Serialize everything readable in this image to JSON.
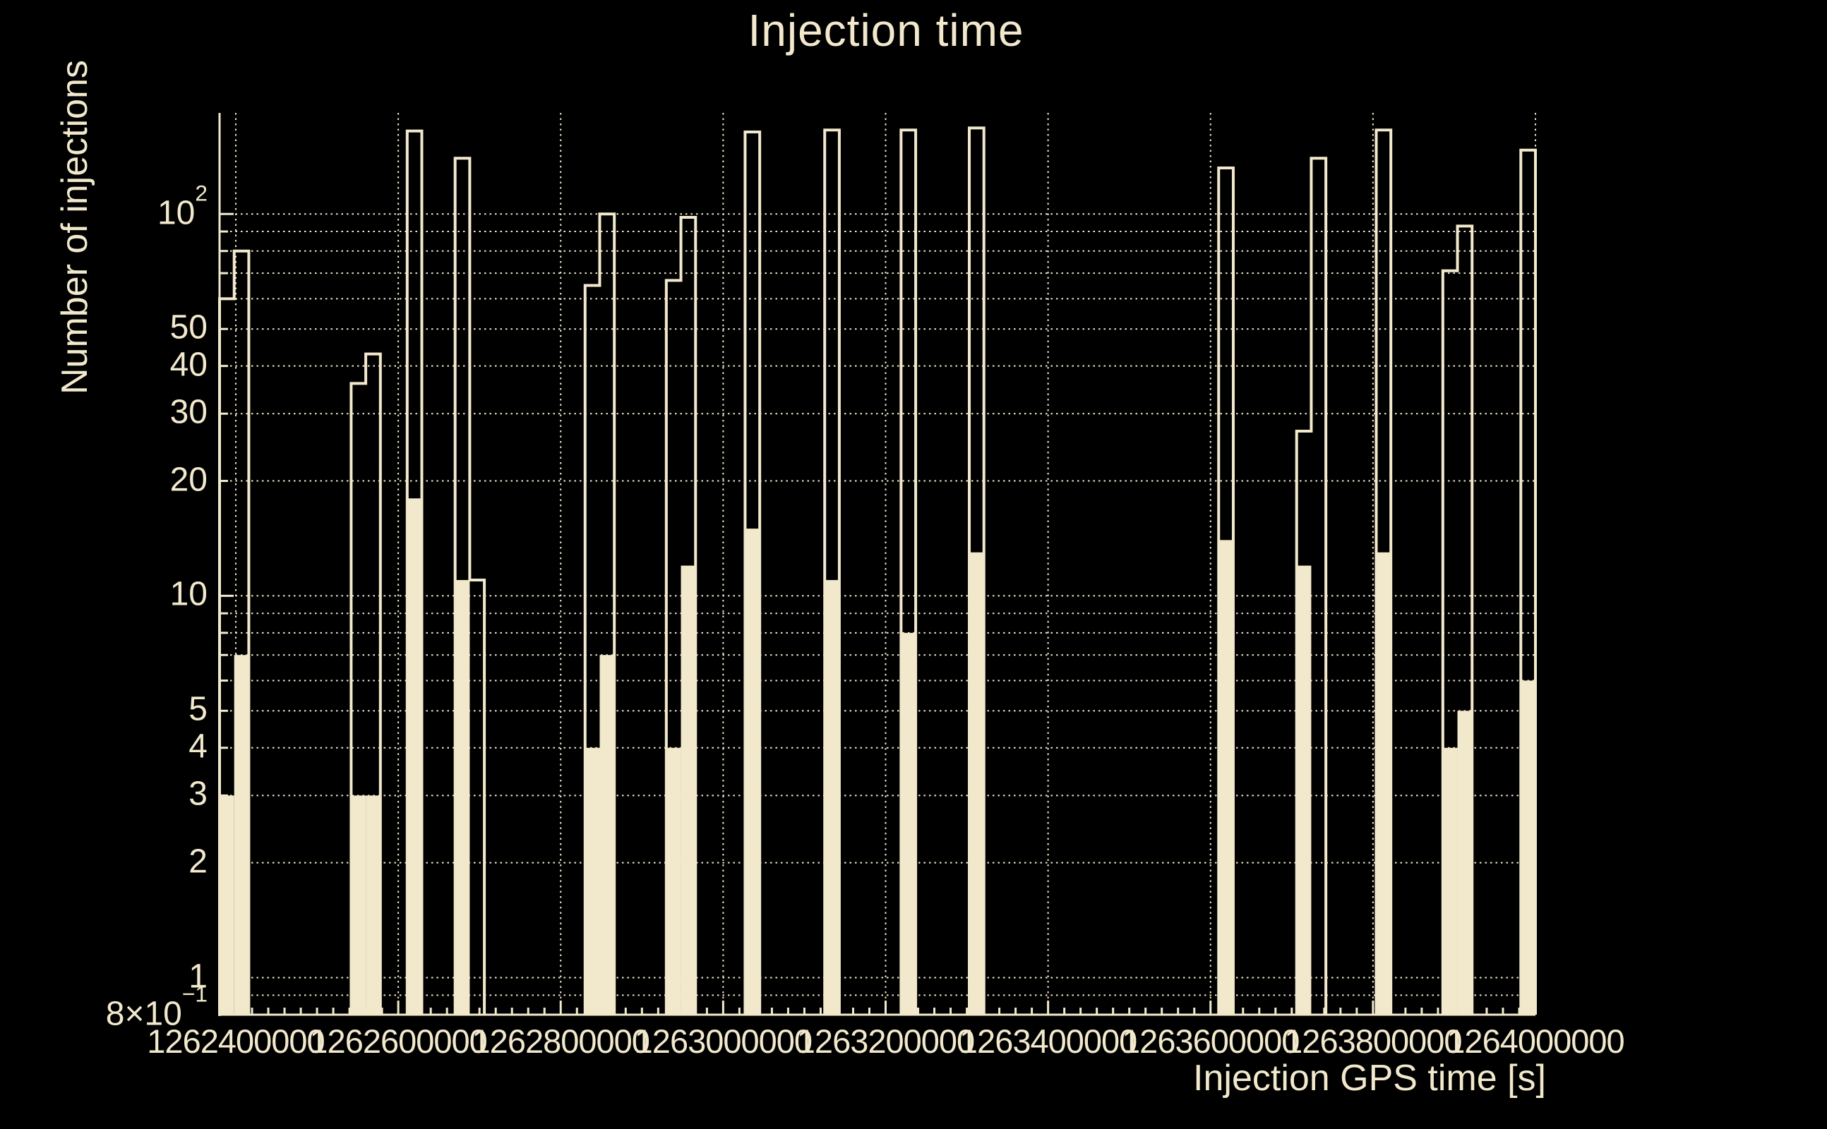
{
  "title": "Injection time",
  "colors": {
    "background": "#000000",
    "foreground": "#f2e9cd"
  },
  "y_axis": {
    "title": "Number of injections",
    "scale": "log",
    "min": 0.8,
    "max": 184,
    "tick_labels": [
      {
        "v": 100,
        "base": "10",
        "sup": "2"
      },
      {
        "v": 50,
        "base": "50"
      },
      {
        "v": 40,
        "base": "40"
      },
      {
        "v": 30,
        "base": "30"
      },
      {
        "v": 20,
        "base": "20"
      },
      {
        "v": 10,
        "base": "10"
      },
      {
        "v": 5,
        "base": "5"
      },
      {
        "v": 4,
        "base": "4"
      },
      {
        "v": 3,
        "base": "3"
      },
      {
        "v": 2,
        "base": "2"
      },
      {
        "v": 1,
        "base": "1"
      },
      {
        "v": 0.8,
        "base": "8×10",
        "sup": "−1"
      }
    ]
  },
  "x_axis": {
    "title": "Injection GPS time [s]",
    "min": 1262380000,
    "max": 1264000000,
    "major_tick_step": 200000,
    "minor_tick_step": 20000,
    "tick_labels": [
      {
        "v": 1262400000,
        "label": "1262400000"
      },
      {
        "v": 1262600000,
        "label": "1262600000"
      },
      {
        "v": 1262800000,
        "label": "1262800000"
      },
      {
        "v": 1263000000,
        "label": "1263000000"
      },
      {
        "v": 1263200000,
        "label": "1263200000"
      },
      {
        "v": 1263400000,
        "label": "1263400000"
      },
      {
        "v": 1263600000,
        "label": "1263600000"
      },
      {
        "v": 1263800000,
        "label": "1263800000"
      },
      {
        "v": 1264000000,
        "label": "1264000000"
      }
    ]
  },
  "chart_data": {
    "type": "bar",
    "subtype": "step-histogram-log-y",
    "title": "Injection time",
    "xlabel": "Injection GPS time [s]",
    "ylabel": "Number of injections",
    "xlim": [
      1262380000,
      1264000000
    ],
    "ylim": [
      0.8,
      184
    ],
    "grid": "dotted, at every log mantissa (y) and every major tick (x)",
    "legend_position": "none",
    "series": [
      {
        "name": "all-injections-outline",
        "style": "outline"
      },
      {
        "name": "filled-subset",
        "style": "filled"
      }
    ],
    "bins": [
      {
        "gps0": 1262380000,
        "gps1": 1262398000,
        "outline": 60,
        "fill": 3
      },
      {
        "gps0": 1262398000,
        "gps1": 1262416000,
        "outline": 80,
        "fill": 7
      },
      {
        "gps0": 1262542000,
        "gps1": 1262560000,
        "outline": 36,
        "fill": 3
      },
      {
        "gps0": 1262560000,
        "gps1": 1262578000,
        "outline": 43,
        "fill": 3
      },
      {
        "gps0": 1262611000,
        "gps1": 1262629000,
        "outline": 165,
        "fill": 18
      },
      {
        "gps0": 1262670000,
        "gps1": 1262688000,
        "outline": 140,
        "fill": 11
      },
      {
        "gps0": 1262688000,
        "gps1": 1262706000,
        "outline": 11,
        "fill": 0
      },
      {
        "gps0": 1262830000,
        "gps1": 1262848000,
        "outline": 65,
        "fill": 4
      },
      {
        "gps0": 1262848000,
        "gps1": 1262866000,
        "outline": 100,
        "fill": 7
      },
      {
        "gps0": 1262930000,
        "gps1": 1262948000,
        "outline": 67,
        "fill": 4
      },
      {
        "gps0": 1262948000,
        "gps1": 1262966000,
        "outline": 98,
        "fill": 12
      },
      {
        "gps0": 1263027000,
        "gps1": 1263045000,
        "outline": 164,
        "fill": 15
      },
      {
        "gps0": 1263125000,
        "gps1": 1263143000,
        "outline": 166,
        "fill": 11
      },
      {
        "gps0": 1263219000,
        "gps1": 1263237000,
        "outline": 166,
        "fill": 8
      },
      {
        "gps0": 1263303000,
        "gps1": 1263321000,
        "outline": 168,
        "fill": 13
      },
      {
        "gps0": 1263610000,
        "gps1": 1263628000,
        "outline": 132,
        "fill": 14
      },
      {
        "gps0": 1263706000,
        "gps1": 1263724000,
        "outline": 27,
        "fill": 12
      },
      {
        "gps0": 1263724000,
        "gps1": 1263742000,
        "outline": 140,
        "fill": 0
      },
      {
        "gps0": 1263804000,
        "gps1": 1263822000,
        "outline": 166,
        "fill": 13
      },
      {
        "gps0": 1263886000,
        "gps1": 1263904000,
        "outline": 71,
        "fill": 4
      },
      {
        "gps0": 1263904000,
        "gps1": 1263922000,
        "outline": 93,
        "fill": 5
      },
      {
        "gps0": 1263982000,
        "gps1": 1264000000,
        "outline": 147,
        "fill": 6
      }
    ]
  }
}
